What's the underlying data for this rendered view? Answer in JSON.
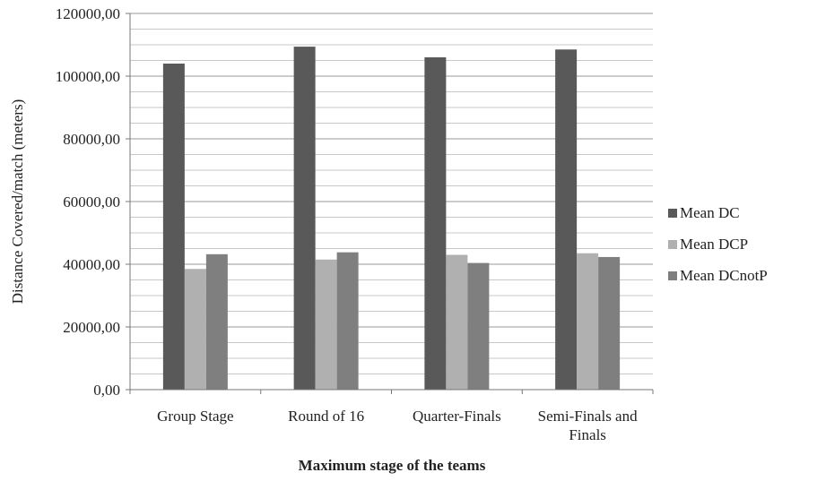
{
  "chart_data": {
    "type": "bar",
    "title": "",
    "xlabel": "Maximum stage of the teams",
    "ylabel": "Distance Covered/match (meters)",
    "categories": [
      "Group Stage",
      "Round of 16",
      "Quarter-Finals",
      "Semi-Finals and Finals"
    ],
    "category_lines": [
      [
        "Group Stage"
      ],
      [
        "Round of 16"
      ],
      [
        "Quarter-Finals"
      ],
      [
        "Semi-Finals and",
        "Finals"
      ]
    ],
    "series": [
      {
        "name": "Mean DC",
        "color": "#595959",
        "values": [
          104000,
          109400,
          106000,
          108500
        ]
      },
      {
        "name": "Mean DCP",
        "color": "#b0b0b0",
        "values": [
          38500,
          41500,
          43000,
          43500
        ]
      },
      {
        "name": "Mean DCnotP",
        "color": "#7f7f7f",
        "values": [
          43200,
          43800,
          40400,
          42300
        ]
      }
    ],
    "ylim": [
      0,
      120000
    ],
    "yticks": [
      "0,00",
      "20000,00",
      "40000,00",
      "60000,00",
      "80000,00",
      "100000,00",
      "120000,00"
    ],
    "grid": true,
    "legend_position": "right"
  }
}
